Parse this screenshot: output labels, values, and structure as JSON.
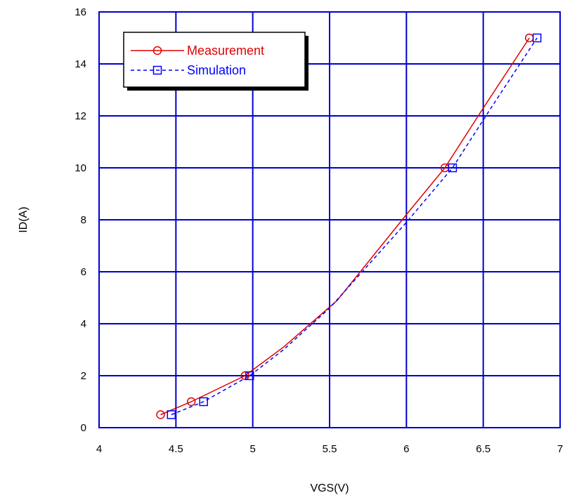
{
  "chart_data": {
    "type": "line",
    "xlabel": "VGS(V)",
    "ylabel": "ID(A)",
    "xlim": [
      4,
      7
    ],
    "ylim": [
      0,
      16
    ],
    "x_ticks": [
      4,
      4.5,
      5,
      5.5,
      6,
      6.5,
      7
    ],
    "y_ticks": [
      0,
      2,
      4,
      6,
      8,
      10,
      12,
      14,
      16
    ],
    "x_tick_labels": [
      "4",
      "4.5",
      "5",
      "5.5",
      "6",
      "6.5",
      "7"
    ],
    "y_tick_labels": [
      "0",
      "2",
      "4",
      "6",
      "8",
      "10",
      "12",
      "14",
      "16"
    ],
    "grid": true,
    "grid_color": "#0000cc",
    "legend_position": "top-left",
    "series": [
      {
        "name": "Measurement",
        "color": "#e00000",
        "line_style": "solid",
        "marker": "circle",
        "points": [
          [
            4.4,
            0.5
          ],
          [
            4.6,
            1.0
          ],
          [
            4.95,
            2.0
          ],
          [
            6.25,
            10.0
          ],
          [
            6.8,
            15.0
          ]
        ],
        "curve": [
          [
            4.4,
            0.5
          ],
          [
            4.6,
            1.0
          ],
          [
            4.95,
            2.0
          ],
          [
            5.2,
            3.1
          ],
          [
            5.55,
            4.9
          ],
          [
            6.0,
            8.2
          ],
          [
            6.25,
            10.0
          ],
          [
            6.5,
            12.3
          ],
          [
            6.8,
            15.0
          ]
        ]
      },
      {
        "name": "Simulation",
        "color": "#0000ff",
        "line_style": "dashed",
        "marker": "square",
        "points": [
          [
            4.47,
            0.5
          ],
          [
            4.68,
            1.0
          ],
          [
            4.98,
            2.0
          ],
          [
            6.3,
            10.0
          ],
          [
            6.85,
            15.0
          ]
        ],
        "curve": [
          [
            4.47,
            0.5
          ],
          [
            4.68,
            1.0
          ],
          [
            4.98,
            2.0
          ],
          [
            5.2,
            3.0
          ],
          [
            5.5,
            4.6
          ],
          [
            6.0,
            7.9
          ],
          [
            6.3,
            10.0
          ],
          [
            6.55,
            12.3
          ],
          [
            6.85,
            15.0
          ]
        ]
      }
    ]
  }
}
